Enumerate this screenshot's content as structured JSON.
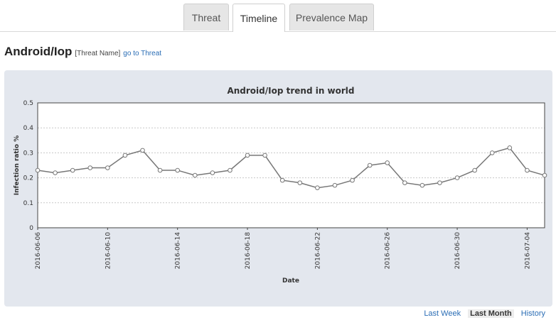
{
  "tabs": [
    {
      "label": "Threat",
      "active": false
    },
    {
      "label": "Timeline",
      "active": true
    },
    {
      "label": "Prevalence Map",
      "active": false
    }
  ],
  "header": {
    "title": "Android/Iop",
    "tag": "[Threat Name]",
    "link": "go to Threat"
  },
  "range_links": {
    "last_week": "Last Week",
    "last_month": "Last Month",
    "history": "History",
    "selected": "Last Month"
  },
  "colors": {
    "panel_bg": "#e3e7ee",
    "line": "#777777",
    "link": "#2a6db5"
  },
  "chart_data": {
    "type": "line",
    "title": "Android/Iop trend in world",
    "xlabel": "Date",
    "ylabel": "Infection ratio %",
    "ylim": [
      0,
      0.5
    ],
    "yticks": [
      "0",
      "0.1",
      "0.2",
      "0.3",
      "0.4",
      "0.5"
    ],
    "grid": true,
    "x": [
      "2016-06-06",
      "2016-06-07",
      "2016-06-08",
      "2016-06-09",
      "2016-06-10",
      "2016-06-11",
      "2016-06-12",
      "2016-06-13",
      "2016-06-14",
      "2016-06-15",
      "2016-06-16",
      "2016-06-17",
      "2016-06-18",
      "2016-06-19",
      "2016-06-20",
      "2016-06-21",
      "2016-06-22",
      "2016-06-23",
      "2016-06-24",
      "2016-06-25",
      "2016-06-26",
      "2016-06-27",
      "2016-06-28",
      "2016-06-29",
      "2016-06-30",
      "2016-07-01",
      "2016-07-02",
      "2016-07-03",
      "2016-07-04",
      "2016-07-05"
    ],
    "xtick_labels": [
      "2016-06-06",
      "2016-06-10",
      "2016-06-14",
      "2016-06-18",
      "2016-06-22",
      "2016-06-26",
      "2016-06-30",
      "2016-07-04"
    ],
    "values": [
      0.23,
      0.22,
      0.23,
      0.24,
      0.24,
      0.29,
      0.31,
      0.23,
      0.23,
      0.21,
      0.22,
      0.23,
      0.29,
      0.29,
      0.19,
      0.18,
      0.16,
      0.17,
      0.19,
      0.25,
      0.26,
      0.18,
      0.17,
      0.18,
      0.2,
      0.23,
      0.3,
      0.32,
      0.23,
      0.21
    ]
  }
}
